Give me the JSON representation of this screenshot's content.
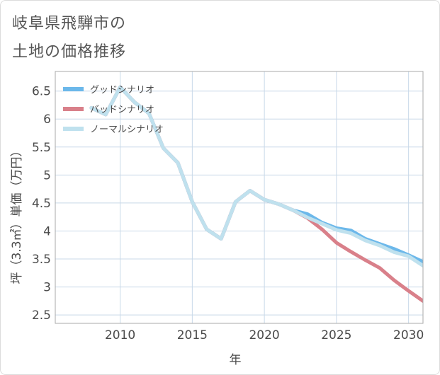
{
  "title_lines": [
    "岐阜県飛騨市の",
    "土地の価格推移"
  ],
  "colors": {
    "good": "#6cb8ea",
    "bad": "#d9808a",
    "normal": "#bfe1ee",
    "grid": "#c8d8e8",
    "plot_bg": "#ffffff",
    "frame": "#aaaaaa"
  },
  "chart_data": {
    "type": "line",
    "title": "岐阜県飛騨市の土地の価格推移",
    "xlabel": "年",
    "ylabel": "坪（3.3㎡）単価（万円）",
    "xlim": [
      2005.5,
      2031
    ],
    "ylim": [
      2.35,
      6.85
    ],
    "x_ticks": [
      2010,
      2015,
      2020,
      2025,
      2030
    ],
    "y_ticks": [
      2.5,
      3,
      3.5,
      4,
      4.5,
      5,
      5.5,
      6,
      6.5
    ],
    "x_tick_labels": [
      "2010",
      "2015",
      "2020",
      "2025",
      "2030"
    ],
    "y_tick_labels": [
      "2.5",
      "3",
      "3.5",
      "4",
      "4.5",
      "5",
      "5.5",
      "6",
      "6.5"
    ],
    "grid": true,
    "legend_position": "top-left",
    "series": [
      {
        "name": "グッドシナリオ",
        "color_key": "good",
        "x": [
          2008,
          2009,
          2010,
          2011,
          2012,
          2013,
          2014,
          2015,
          2016,
          2017,
          2018,
          2019,
          2020,
          2021,
          2022,
          2023,
          2024,
          2025,
          2026,
          2027,
          2028,
          2029,
          2030,
          2031
        ],
        "y": [
          6.2,
          6.08,
          6.57,
          6.3,
          6.1,
          5.48,
          5.22,
          4.52,
          4.03,
          3.86,
          4.52,
          4.72,
          4.56,
          4.48,
          4.37,
          4.3,
          4.15,
          4.05,
          4.01,
          3.86,
          3.77,
          3.68,
          3.57,
          3.45
        ]
      },
      {
        "name": "バッドシナリオ",
        "color_key": "bad",
        "x": [
          2008,
          2009,
          2010,
          2011,
          2012,
          2013,
          2014,
          2015,
          2016,
          2017,
          2018,
          2019,
          2020,
          2021,
          2022,
          2023,
          2024,
          2025,
          2026,
          2027,
          2028,
          2029,
          2030,
          2031
        ],
        "y": [
          6.2,
          6.08,
          6.57,
          6.3,
          6.1,
          5.48,
          5.22,
          4.52,
          4.03,
          3.86,
          4.52,
          4.72,
          4.56,
          4.48,
          4.37,
          4.23,
          4.03,
          3.79,
          3.63,
          3.48,
          3.34,
          3.12,
          2.93,
          2.75
        ]
      },
      {
        "name": "ノーマルシナリオ",
        "color_key": "normal",
        "x": [
          2008,
          2009,
          2010,
          2011,
          2012,
          2013,
          2014,
          2015,
          2016,
          2017,
          2018,
          2019,
          2020,
          2021,
          2022,
          2023,
          2024,
          2025,
          2026,
          2027,
          2028,
          2029,
          2030,
          2031
        ],
        "y": [
          6.2,
          6.08,
          6.57,
          6.3,
          6.1,
          5.48,
          5.22,
          4.52,
          4.03,
          3.86,
          4.52,
          4.72,
          4.56,
          4.48,
          4.37,
          4.24,
          4.13,
          4.02,
          3.96,
          3.83,
          3.74,
          3.62,
          3.55,
          3.38
        ]
      }
    ]
  }
}
